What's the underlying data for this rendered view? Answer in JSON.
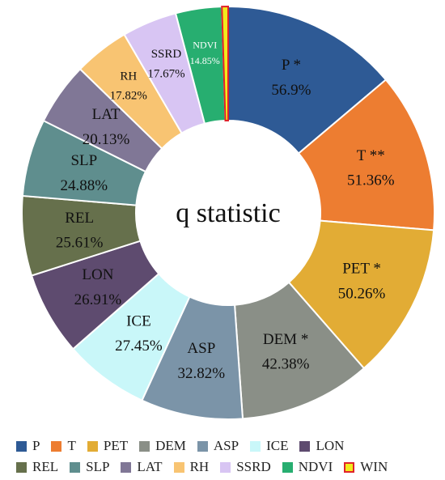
{
  "chart_data": {
    "type": "donut",
    "title": "",
    "center_label": "q statistic",
    "series": [
      {
        "key": "P",
        "label": "P *",
        "value_label": "56.9%",
        "value": 56.9,
        "color": "#2E5A95",
        "text_color": "#111111"
      },
      {
        "key": "T",
        "label": "T **",
        "value_label": "51.36%",
        "value": 51.36,
        "color": "#ED7D31",
        "text_color": "#111111"
      },
      {
        "key": "PET",
        "label": "PET *",
        "value_label": "50.26%",
        "value": 50.26,
        "color": "#E2AC35",
        "text_color": "#111111"
      },
      {
        "key": "DEM",
        "label": "DEM *",
        "value_label": "42.38%",
        "value": 42.38,
        "color": "#8A8F87",
        "text_color": "#111111"
      },
      {
        "key": "ASP",
        "label": "ASP",
        "value_label": "32.82%",
        "value": 32.82,
        "color": "#7B94A8",
        "text_color": "#111111"
      },
      {
        "key": "ICE",
        "label": "ICE",
        "value_label": "27.45%",
        "value": 27.45,
        "color": "#C9F7F9",
        "text_color": "#111111"
      },
      {
        "key": "LON",
        "label": "LON",
        "value_label": "26.91%",
        "value": 26.91,
        "color": "#5E4B6F",
        "text_color": "#111111"
      },
      {
        "key": "REL",
        "label": "REL",
        "value_label": "25.61%",
        "value": 25.61,
        "color": "#66704C",
        "text_color": "#111111"
      },
      {
        "key": "SLP",
        "label": "SLP",
        "value_label": "24.88%",
        "value": 24.88,
        "color": "#5F8E8E",
        "text_color": "#111111"
      },
      {
        "key": "LAT",
        "label": "LAT",
        "value_label": "20.13%",
        "value": 20.13,
        "color": "#807796",
        "text_color": "#111111"
      },
      {
        "key": "RH",
        "label": "RH",
        "value_label": "17.82%",
        "value": 17.82,
        "color": "#F8C472",
        "text_color": "#111111"
      },
      {
        "key": "SSRD",
        "label": "SSRD",
        "value_label": "17.67%",
        "value": 17.67,
        "color": "#D8C5F3",
        "text_color": "#111111"
      },
      {
        "key": "NDVI",
        "label": "NDVI",
        "value_label": "14.85%",
        "value": 14.85,
        "color": "#27AE70",
        "text_color": "#FFFFFF"
      },
      {
        "key": "WIN",
        "label": "",
        "value_label": "",
        "value": 2.0,
        "color": "#F2EB1B",
        "stroke": "#E0232B",
        "text_color": "#111111"
      }
    ],
    "legend": {
      "placement": "bottom",
      "rows": [
        [
          "P",
          "T",
          "PET",
          "DEM",
          "ASP",
          "ICE",
          "LON"
        ],
        [
          "REL",
          "SLP",
          "LAT",
          "RH",
          "SSRD",
          "NDVI",
          "WIN"
        ]
      ]
    }
  }
}
